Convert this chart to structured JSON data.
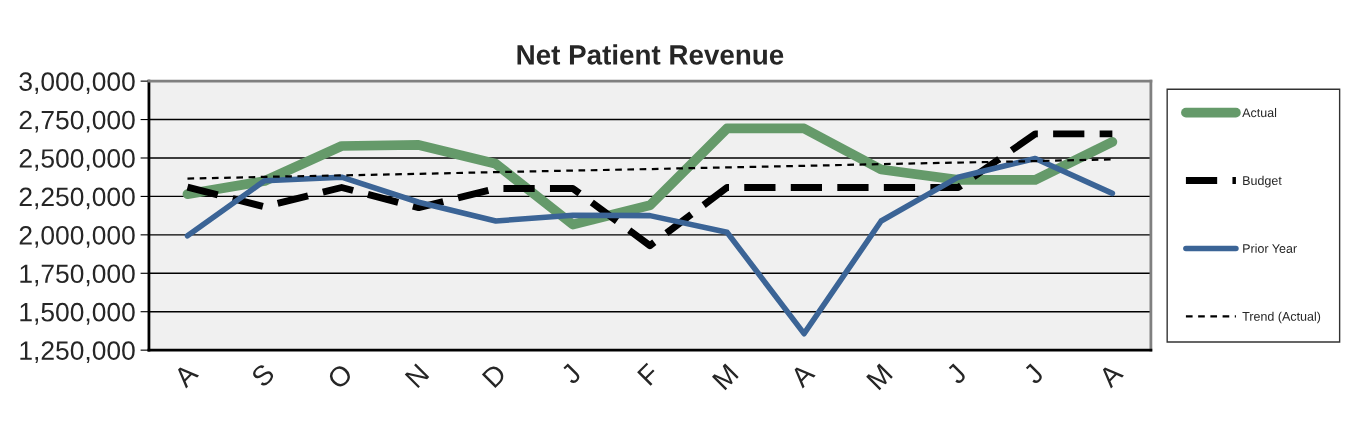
{
  "chart_data": {
    "type": "line",
    "title": "Net Patient Revenue",
    "categories": [
      "A",
      "S",
      "O",
      "N",
      "D",
      "J",
      "F",
      "M",
      "A",
      "M",
      "J",
      "J",
      "A"
    ],
    "ylim": [
      1250000,
      3000000
    ],
    "yticks": [
      {
        "value": 1250000,
        "label": "1,250,000"
      },
      {
        "value": 1500000,
        "label": "1,500,000"
      },
      {
        "value": 1750000,
        "label": "1,750,000"
      },
      {
        "value": 2000000,
        "label": "2,000,000"
      },
      {
        "value": 2250000,
        "label": "2,250,000"
      },
      {
        "value": 2500000,
        "label": "2,500,000"
      },
      {
        "value": 2750000,
        "label": "2,750,000"
      },
      {
        "value": 3000000,
        "label": "3,000,000"
      }
    ],
    "grid": "y",
    "legend": "right",
    "marker": "none",
    "series": [
      {
        "name": "Actual",
        "color": "#659a6a",
        "line_style": "solid",
        "values": [
          2265000,
          2350000,
          2578000,
          2585000,
          2462000,
          2067000,
          2192000,
          2692000,
          2692000,
          2425000,
          2358000,
          2358000,
          2605000
        ]
      },
      {
        "name": "Budget",
        "color": "#000000",
        "line_style": "dashed",
        "values": [
          2310000,
          2183000,
          2308000,
          2177000,
          2302000,
          2302000,
          1930000,
          2308000,
          2308000,
          2308000,
          2308000,
          2657000,
          2657000
        ]
      },
      {
        "name": "Prior Year",
        "color": "#3b6496",
        "line_style": "solid",
        "values": [
          1994000,
          2352000,
          2375000,
          2212000,
          2090000,
          2128000,
          2125000,
          2017000,
          1357000,
          2090000,
          2375000,
          2497000,
          2270000
        ]
      },
      {
        "name": "Trend (Actual)",
        "color": "#000000",
        "line_style": "dotted",
        "values": [
          2366000,
          2377000,
          2387000,
          2397000,
          2408000,
          2418000,
          2428000,
          2439000,
          2449000,
          2460000,
          2470000,
          2480000,
          2491000
        ]
      }
    ]
  }
}
